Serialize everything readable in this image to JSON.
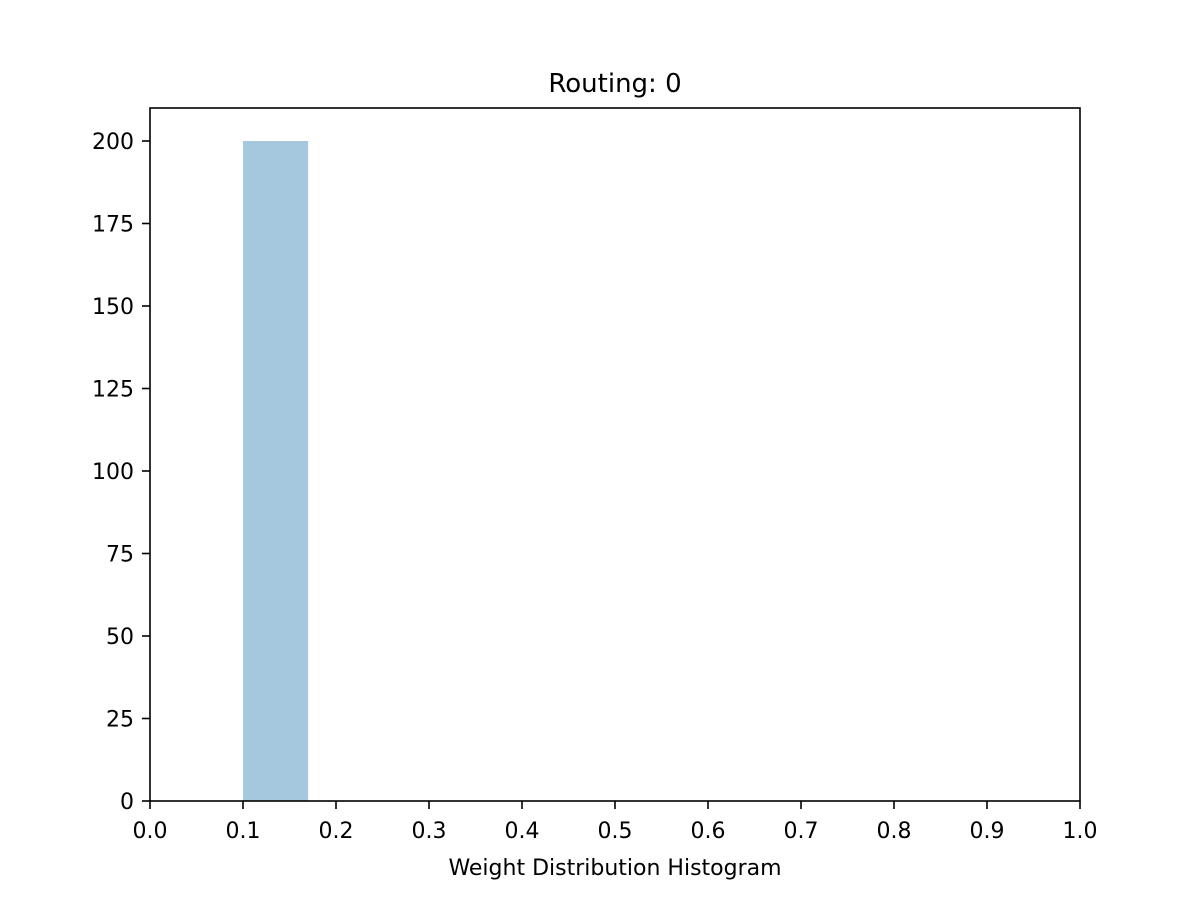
{
  "chart_data": {
    "type": "bar",
    "title": "Routing: 0",
    "xlabel": "Weight Distribution Histogram",
    "ylabel": "",
    "xlim": [
      0.0,
      1.0
    ],
    "ylim": [
      0,
      210
    ],
    "xticks": [
      0.0,
      0.1,
      0.2,
      0.3,
      0.4,
      0.5,
      0.6,
      0.7,
      0.8,
      0.9,
      1.0
    ],
    "xtick_labels": [
      "0.0",
      "0.1",
      "0.2",
      "0.3",
      "0.4",
      "0.5",
      "0.6",
      "0.7",
      "0.8",
      "0.9",
      "1.0"
    ],
    "yticks": [
      0,
      25,
      50,
      75,
      100,
      125,
      150,
      175,
      200
    ],
    "ytick_labels": [
      "0",
      "25",
      "50",
      "75",
      "100",
      "125",
      "150",
      "175",
      "200"
    ],
    "bins": [
      {
        "x_start": 0.1,
        "x_end": 0.17,
        "count": 200
      }
    ],
    "bar_color": "#a6c8df",
    "grid": false,
    "legend": "none"
  }
}
